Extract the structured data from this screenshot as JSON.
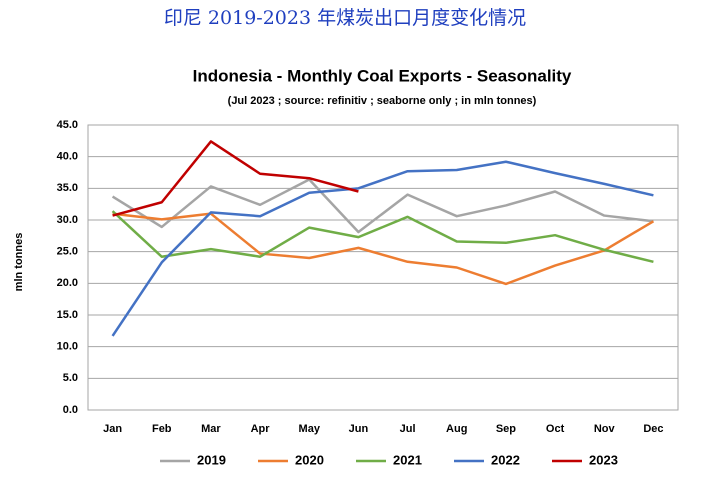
{
  "chart_data": {
    "type": "line",
    "caption": "印尼 2019-2023 年煤炭出口月度变化情况",
    "title": "Indonesia - Monthly Coal Exports - Seasonality",
    "subtitle": "(Jul 2023 ; source: refinitiv ; seaborne only ; in mln tonnes)",
    "y_label": "mln tonnes",
    "categories": [
      "Jan",
      "Feb",
      "Mar",
      "Apr",
      "May",
      "Jun",
      "Jul",
      "Aug",
      "Sep",
      "Oct",
      "Nov",
      "Dec"
    ],
    "ylim": [
      0,
      45
    ],
    "yticks": [
      {
        "value": 0,
        "label": "0.0"
      },
      {
        "value": 5,
        "label": "5.0"
      },
      {
        "value": 10,
        "label": "10.0"
      },
      {
        "value": 15,
        "label": "15.0"
      },
      {
        "value": 20,
        "label": "20.0"
      },
      {
        "value": 25,
        "label": "25.0"
      },
      {
        "value": 30,
        "label": "30.0"
      },
      {
        "value": 35,
        "label": "35.0"
      },
      {
        "value": 40,
        "label": "40.0"
      },
      {
        "value": 45,
        "label": "45.0"
      }
    ],
    "grid": true,
    "legend": "bottom",
    "series": [
      {
        "name": "2019",
        "color": "#a5a5a5",
        "values": [
          33.7,
          28.9,
          35.3,
          32.4,
          36.4,
          28.1,
          34.0,
          30.6,
          32.3,
          34.5,
          30.7,
          29.8
        ]
      },
      {
        "name": "2020",
        "color": "#ed7d31",
        "values": [
          31.0,
          30.1,
          31.0,
          24.7,
          24.0,
          25.6,
          23.4,
          22.5,
          19.9,
          22.8,
          25.2,
          29.8
        ]
      },
      {
        "name": "2021",
        "color": "#70ad47",
        "values": [
          31.4,
          24.2,
          25.4,
          24.2,
          28.8,
          27.3,
          30.5,
          26.6,
          26.4,
          27.6,
          25.3,
          23.4
        ]
      },
      {
        "name": "2022",
        "color": "#4472c4",
        "values": [
          11.7,
          23.3,
          31.2,
          30.6,
          34.3,
          35.0,
          37.7,
          37.9,
          39.2,
          37.4,
          35.7,
          33.9
        ]
      },
      {
        "name": "2023",
        "color": "#c00000",
        "values": [
          30.7,
          32.8,
          42.4,
          37.3,
          36.6,
          34.5,
          null,
          null,
          null,
          null,
          null,
          null
        ]
      }
    ]
  }
}
